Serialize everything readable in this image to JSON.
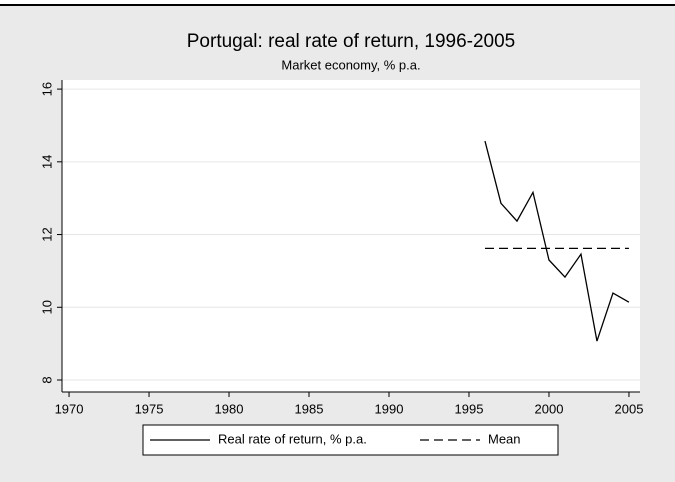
{
  "chart_data": {
    "type": "line",
    "title": "Portugal: real rate of return, 1996-2005",
    "subtitle": "Market economy, % p.a.",
    "x": [
      1996,
      1997,
      1998,
      1999,
      2000,
      2001,
      2002,
      2003,
      2004,
      2005
    ],
    "series": [
      {
        "name": "Real rate of return, % p.a.",
        "color": "#000000",
        "dash": false,
        "values": [
          14.57,
          12.86,
          12.37,
          13.16,
          11.3,
          10.83,
          11.46,
          9.07,
          10.39,
          10.14
        ]
      },
      {
        "name": "Mean",
        "color": "#000000",
        "dash": true,
        "values": [
          11.62,
          11.62,
          11.62,
          11.62,
          11.62,
          11.62,
          11.62,
          11.62,
          11.62,
          11.62
        ]
      }
    ],
    "xlim": [
      1969.56,
      2005.69
    ],
    "xticks": [
      1970,
      1975,
      1980,
      1985,
      1990,
      1995,
      2000,
      2005
    ],
    "ylim": [
      7.67,
      16.25
    ],
    "yticks": [
      8,
      10,
      12,
      14,
      16
    ],
    "grid": true,
    "legend": "bottom"
  }
}
